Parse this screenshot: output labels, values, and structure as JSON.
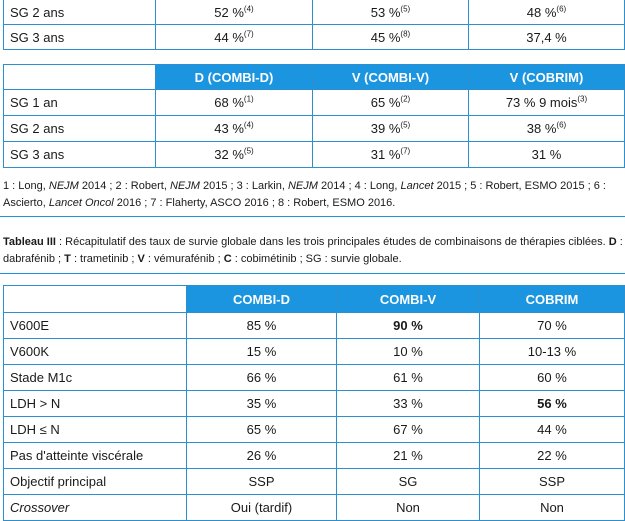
{
  "table_top": {
    "rows": [
      {
        "label": "SG 2 ans",
        "c1": "52 %",
        "c1_ref": "(4)",
        "c2": "53 %",
        "c2_ref": "(5)",
        "c3": "48 %",
        "c3_ref": "(6)"
      },
      {
        "label": "SG 3 ans",
        "c1": "44 %",
        "c1_ref": "(7)",
        "c2": "45 %",
        "c2_ref": "(8)",
        "c3": "37,4 %",
        "c3_ref": ""
      }
    ]
  },
  "table_mid": {
    "headers": [
      "D (COMBI-D)",
      "V (COMBI-V)",
      "V (COBRIM)"
    ],
    "rows": [
      {
        "label": "SG 1 an",
        "c1": "68 %",
        "c1_ref": "(1)",
        "c2": "65 %",
        "c2_ref": "(2)",
        "c3": "73 % 9 mois",
        "c3_ref": "(3)"
      },
      {
        "label": "SG 2 ans",
        "c1": "43 %",
        "c1_ref": "(4)",
        "c2": "39 %",
        "c2_ref": "(5)",
        "c3": "38 %",
        "c3_ref": "(6)"
      },
      {
        "label": "SG 3 ans",
        "c1": "32 %",
        "c1_ref": "(5)",
        "c2": "31 %",
        "c2_ref": "(7)",
        "c3": "31 %",
        "c3_ref": ""
      }
    ]
  },
  "references": {
    "r1": "1 : Long, ",
    "r1_j": "NEJM",
    "r1_y": " 2014 ; 2 : Robert, ",
    "r2_j": "NEJM",
    "r2_y": " 2015 ; 3 : Larkin, ",
    "r3_j": "NEJM",
    "r3_y": " 2014 ; 4 : Long, ",
    "r4_j": "Lancet",
    "r4_y": " 2015 ; 5 : Robert, ESMO 2015 ; 6 : Ascierto, ",
    "r6_j": "Lancet Oncol",
    "r6_y": " 2016 ; 7 : Flaherty, ASCO 2016 ; 8 : Robert, ESMO 2016."
  },
  "caption": {
    "title": "Tableau III",
    "t1": " : Récapitulatif des taux de survie globale dans les trois principales études de combinaisons de thérapies ciblées. ",
    "d": "D",
    "t2": " : dabrafénib ; ",
    "t": "T",
    "t3": " : trametinib ; ",
    "v": "V",
    "t4": " : vémurafénib ; ",
    "c": "C",
    "t5": " : cobimétinib ; SG : survie globale."
  },
  "table_bottom": {
    "headers": [
      "COMBI-D",
      "COMBI-V",
      "COBRIM"
    ],
    "rows": [
      {
        "label": "V600E",
        "c1": "85 %",
        "c2": "90 %",
        "c3": "70 %"
      },
      {
        "label": "V600K",
        "c1": "15 %",
        "c2": "10 %",
        "c3": "10-13 %"
      },
      {
        "label": "Stade M1c",
        "c1": "66 %",
        "c2": "61 %",
        "c3": "60 %"
      },
      {
        "label": "LDH > N",
        "c1": "35 %",
        "c2": "33 %",
        "c3": "56 %"
      },
      {
        "label": "LDH ≤ N",
        "c1": "65 %",
        "c2": "67 %",
        "c3": "44 %"
      },
      {
        "label": "Pas d'atteinte viscérale",
        "c1": "26 %",
        "c2": "21 %",
        "c3": "22 %"
      },
      {
        "label": "Objectif principal",
        "c1": "SSP",
        "c2": "SG",
        "c3": "SSP"
      },
      {
        "label": "Crossover",
        "c1": "Oui (tardif)",
        "c2": "Non",
        "c3": "Non"
      }
    ]
  },
  "colors": {
    "header_blue": "#1b95e0",
    "border_blue": "#2b8fd0"
  }
}
